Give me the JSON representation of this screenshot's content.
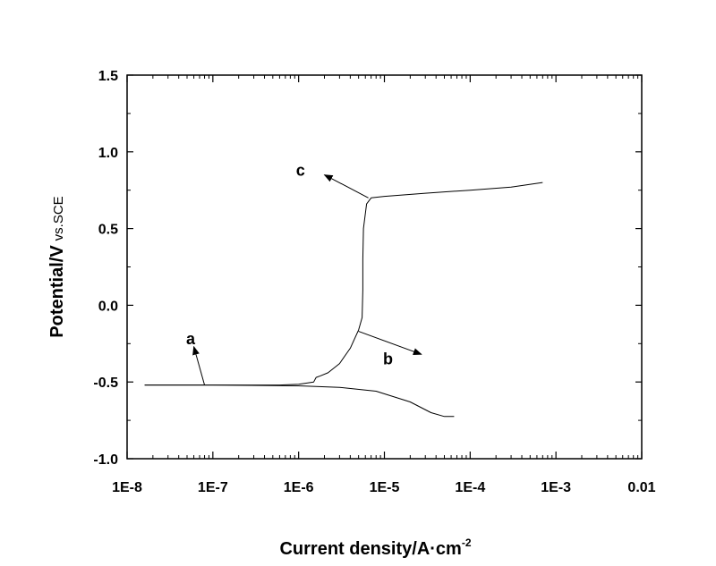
{
  "chart_data": {
    "type": "line",
    "title": "",
    "xlabel": "Current density/A·cm",
    "xlabel_superscript": "-2",
    "ylabel": "Potential/V",
    "ylabel_suffix": "vs.SCE",
    "xscale": "log",
    "xlim": [
      1e-08,
      0.01
    ],
    "ylim": [
      -1.0,
      1.5
    ],
    "x_tick_labels": [
      "1E-8",
      "1E-7",
      "1E-6",
      "1E-5",
      "1E-4",
      "1E-3",
      "0.01"
    ],
    "x_tick_values": [
      1e-08,
      1e-07,
      1e-06,
      1e-05,
      0.0001,
      0.001,
      0.01
    ],
    "y_tick_labels": [
      "1.5",
      "1.0",
      "0.5",
      "0.0",
      "-0.5",
      "-1.0"
    ],
    "y_tick_values": [
      1.5,
      1.0,
      0.5,
      0.0,
      -0.5,
      -1.0
    ],
    "grid": false,
    "series": [
      {
        "name": "",
        "color": "#000000",
        "branch": "anodic",
        "points": [
          [
            1.6e-08,
            -0.52
          ],
          [
            5e-08,
            -0.52
          ],
          [
            1e-07,
            -0.52
          ],
          [
            3e-07,
            -0.52
          ],
          [
            6e-07,
            -0.52
          ],
          [
            1e-06,
            -0.515
          ],
          [
            1.5e-06,
            -0.5
          ],
          [
            1.6e-06,
            -0.47
          ],
          [
            1.8e-06,
            -0.46
          ],
          [
            2.2e-06,
            -0.44
          ],
          [
            3e-06,
            -0.38
          ],
          [
            4e-06,
            -0.28
          ],
          [
            5e-06,
            -0.16
          ],
          [
            5.5e-06,
            -0.08
          ],
          [
            5.6e-06,
            0.1
          ],
          [
            5.6e-06,
            0.3
          ],
          [
            5.7e-06,
            0.5
          ],
          [
            6.2e-06,
            0.66
          ],
          [
            7e-06,
            0.7
          ],
          [
            1e-05,
            0.71
          ],
          [
            3e-05,
            0.73
          ],
          [
            0.0001,
            0.75
          ],
          [
            0.0003,
            0.77
          ],
          [
            0.0007,
            0.8
          ]
        ]
      },
      {
        "name": "",
        "color": "#000000",
        "branch": "cathodic",
        "points": [
          [
            1.6e-08,
            -0.52
          ],
          [
            1e-07,
            -0.52
          ],
          [
            1e-06,
            -0.525
          ],
          [
            3e-06,
            -0.535
          ],
          [
            8e-06,
            -0.56
          ],
          [
            2e-05,
            -0.63
          ],
          [
            3.5e-05,
            -0.7
          ],
          [
            5e-05,
            -0.725
          ],
          [
            6.5e-05,
            -0.725
          ]
        ]
      }
    ],
    "annotations": [
      {
        "label": "a",
        "arrow_from": [
          8e-08,
          -0.52
        ],
        "arrow_to": [
          6e-08,
          -0.27
        ],
        "text_at": [
          5.5e-08,
          -0.22
        ]
      },
      {
        "label": "b",
        "arrow_from": [
          5e-06,
          -0.17
        ],
        "arrow_to": [
          2.7e-05,
          -0.32
        ],
        "text_at": [
          1.1e-05,
          -0.35
        ]
      },
      {
        "label": "c",
        "arrow_from": [
          6.5e-06,
          0.7
        ],
        "arrow_to": [
          2e-06,
          0.85
        ],
        "text_at": [
          1.05e-06,
          0.88
        ]
      }
    ]
  }
}
